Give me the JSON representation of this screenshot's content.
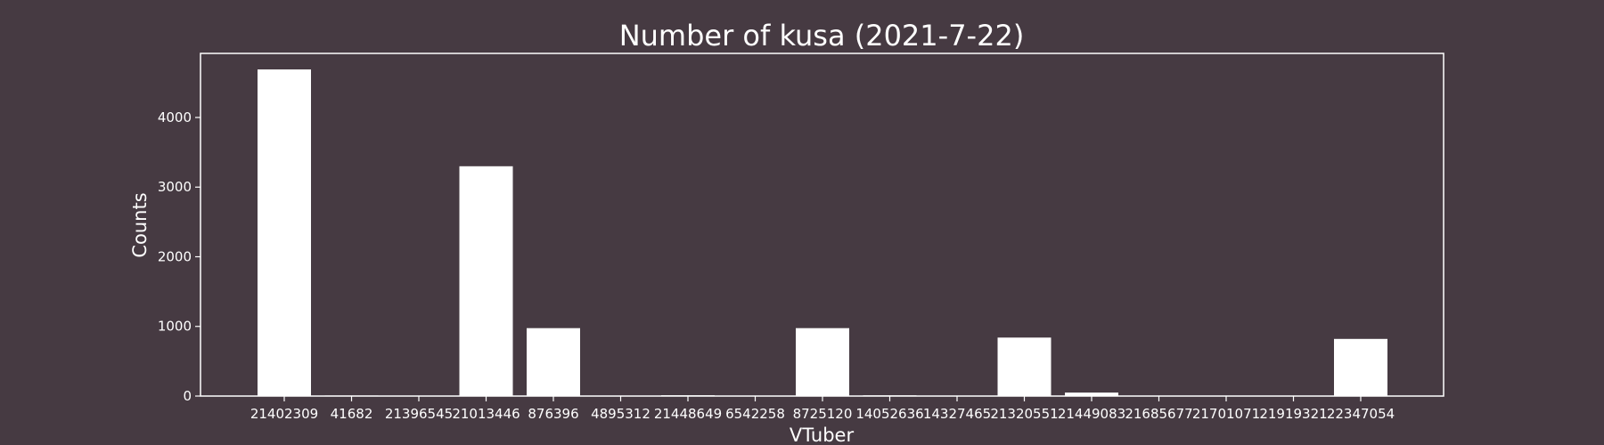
{
  "chart_data": {
    "type": "bar",
    "title": "Number of kusa (2021-7-22)",
    "xlabel": "VTuber",
    "ylabel": "Counts",
    "categories": [
      "21402309",
      "41682",
      "21396545",
      "21013446",
      "876396",
      "4895312",
      "21448649",
      "6542258",
      "8725120",
      "14052636",
      "14327465",
      "21320551",
      "21449083",
      "21685677",
      "21701071",
      "21919321",
      "22347054"
    ],
    "values": [
      4690,
      8,
      0,
      3300,
      975,
      0,
      12,
      0,
      975,
      10,
      0,
      840,
      50,
      0,
      0,
      0,
      820
    ],
    "yticks": [
      0,
      1000,
      2000,
      3000,
      4000
    ],
    "ylim": [
      0,
      4920
    ],
    "grid": false,
    "bar_color": "#ffffff",
    "axis_color": "#ffffff",
    "background": "#463a42"
  }
}
